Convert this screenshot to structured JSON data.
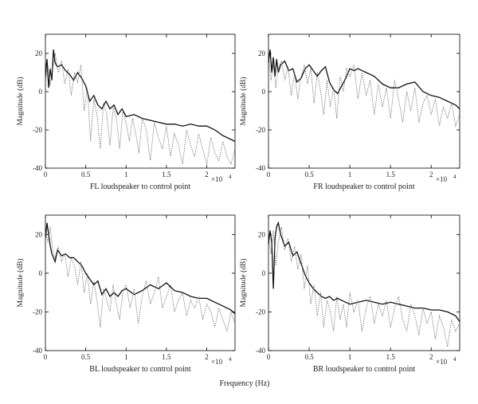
{
  "figure": {
    "shared_xlabel": "Frequency (Hz)"
  },
  "chart_data": [
    {
      "type": "line",
      "caption": "FL loudspeaker to control point",
      "ylabel": "Magnitude (dB)",
      "xlim": [
        0,
        23500
      ],
      "ylim": [
        -40,
        30
      ],
      "xticks": [
        0,
        5000,
        10000,
        15000,
        20000
      ],
      "xtick_labels": [
        "0",
        "0.5",
        "1",
        "1.5",
        "2"
      ],
      "yticks": [
        20,
        0,
        -20,
        -40
      ],
      "ytick_labels": [
        "20",
        "0",
        "-20",
        "-40"
      ],
      "x_multiplier": "×10",
      "x_exponent": "4",
      "series": [
        {
          "style": "solid",
          "x": [
            0,
            200,
            400,
            600,
            800,
            1000,
            1200,
            1500,
            2000,
            2500,
            3000,
            3500,
            4000,
            4500,
            5000,
            5500,
            6000,
            6500,
            7000,
            7500,
            8000,
            8500,
            9000,
            9500,
            10000,
            11000,
            12000,
            13000,
            14000,
            15000,
            16000,
            17000,
            18000,
            19000,
            20000,
            21000,
            22000,
            23000,
            23500
          ],
          "y": [
            8,
            17,
            2,
            12,
            6,
            22,
            15,
            13,
            14,
            11,
            9,
            6,
            10,
            7,
            3,
            -5,
            -2,
            -7,
            -9,
            -5,
            -9,
            -7,
            -12,
            -9,
            -13,
            -12,
            -14,
            -15,
            -16,
            -17,
            -17,
            -18,
            -17,
            -18,
            -18,
            -20,
            -23,
            -25,
            -26
          ]
        },
        {
          "style": "dotted",
          "x": [
            0,
            300,
            600,
            900,
            1200,
            1600,
            2000,
            2400,
            2800,
            3200,
            3600,
            4000,
            4400,
            4800,
            5200,
            5600,
            6000,
            6400,
            6800,
            7200,
            7600,
            8000,
            8400,
            8800,
            9200,
            9600,
            10000,
            10400,
            10800,
            11200,
            11600,
            12000,
            12500,
            13000,
            13500,
            14000,
            14500,
            15000,
            15500,
            16000,
            16500,
            17000,
            17500,
            18000,
            18500,
            19000,
            19500,
            20000,
            20500,
            21000,
            21500,
            22000,
            22500,
            23000,
            23500
          ],
          "y": [
            5,
            14,
            3,
            12,
            20,
            10,
            16,
            4,
            12,
            -2,
            10,
            5,
            14,
            -10,
            2,
            -26,
            -4,
            -12,
            -30,
            -6,
            -12,
            -28,
            -8,
            -14,
            -30,
            -10,
            -16,
            -26,
            -14,
            -22,
            -32,
            -14,
            -20,
            -36,
            -16,
            -24,
            -30,
            -18,
            -34,
            -22,
            -28,
            -38,
            -20,
            -28,
            -34,
            -22,
            -30,
            -38,
            -24,
            -32,
            -36,
            -26,
            -34,
            -38,
            -30
          ]
        }
      ]
    },
    {
      "type": "line",
      "caption": "FR loudspeaker to control point",
      "ylabel": "Magnitude (dB)",
      "xlim": [
        0,
        23500
      ],
      "ylim": [
        -40,
        30
      ],
      "xticks": [
        0,
        5000,
        10000,
        15000,
        20000
      ],
      "xtick_labels": [
        "0",
        "0.5",
        "1",
        "1.5",
        "2"
      ],
      "yticks": [
        20,
        0,
        -20,
        -40
      ],
      "ytick_labels": [
        "20",
        "0",
        "-20",
        "-40"
      ],
      "x_multiplier": "×10",
      "x_exponent": "4",
      "series": [
        {
          "style": "solid",
          "x": [
            0,
            200,
            400,
            600,
            800,
            1000,
            1200,
            1500,
            2000,
            2500,
            3000,
            3500,
            4000,
            4500,
            5000,
            5500,
            6000,
            6500,
            7000,
            7500,
            8000,
            8500,
            9000,
            9500,
            10000,
            10500,
            11000,
            12000,
            13000,
            14000,
            15000,
            16000,
            17000,
            18000,
            19000,
            20000,
            21000,
            22000,
            23000,
            23500
          ],
          "y": [
            15,
            22,
            10,
            18,
            8,
            17,
            10,
            14,
            16,
            11,
            12,
            5,
            7,
            12,
            14,
            11,
            8,
            11,
            13,
            5,
            1,
            -1,
            3,
            7,
            12,
            11,
            12,
            10,
            8,
            4,
            2,
            2,
            4,
            5,
            0,
            -2,
            -3,
            -5,
            -7,
            -9
          ]
        },
        {
          "style": "dotted",
          "x": [
            0,
            300,
            600,
            900,
            1200,
            1600,
            2000,
            2400,
            2800,
            3200,
            3600,
            4000,
            4400,
            4800,
            5200,
            5600,
            6000,
            6400,
            6800,
            7200,
            7600,
            8000,
            8400,
            8800,
            9200,
            9600,
            10000,
            10500,
            11000,
            11500,
            12000,
            12500,
            13000,
            13500,
            14000,
            14500,
            15000,
            15500,
            16000,
            16500,
            17000,
            17500,
            18000,
            18500,
            19000,
            19500,
            20000,
            20500,
            21000,
            21500,
            22000,
            22500,
            23000,
            23500
          ],
          "y": [
            20,
            6,
            14,
            2,
            12,
            16,
            6,
            13,
            -2,
            10,
            -4,
            8,
            14,
            4,
            12,
            -6,
            10,
            0,
            -12,
            6,
            -8,
            2,
            -14,
            8,
            0,
            12,
            8,
            14,
            -4,
            10,
            -2,
            6,
            -12,
            4,
            -8,
            2,
            -14,
            6,
            -4,
            -16,
            0,
            -10,
            2,
            -16,
            -6,
            -2,
            -12,
            -4,
            -18,
            -8,
            -14,
            -6,
            -18,
            -12
          ]
        }
      ]
    },
    {
      "type": "line",
      "caption": "BL loudspeaker to control point",
      "ylabel": "Magnitude (dB)",
      "xlim": [
        0,
        23500
      ],
      "ylim": [
        -40,
        30
      ],
      "xticks": [
        0,
        5000,
        10000,
        15000,
        20000
      ],
      "xtick_labels": [
        "0",
        "0.5",
        "1",
        "1.5",
        "2"
      ],
      "yticks": [
        20,
        0,
        -20,
        -40
      ],
      "ytick_labels": [
        "20",
        "0",
        "-20",
        "-40"
      ],
      "x_multiplier": "×10",
      "x_exponent": "4",
      "series": [
        {
          "style": "solid",
          "x": [
            0,
            200,
            400,
            600,
            800,
            1000,
            1200,
            1500,
            2000,
            2500,
            3000,
            3500,
            4000,
            4500,
            5000,
            5500,
            6000,
            6500,
            7000,
            7500,
            8000,
            8500,
            9000,
            9500,
            10000,
            11000,
            12000,
            13000,
            14000,
            15000,
            16000,
            17000,
            18000,
            19000,
            20000,
            21000,
            22000,
            23000,
            23500
          ],
          "y": [
            18,
            26,
            20,
            14,
            10,
            8,
            6,
            12,
            9,
            10,
            8,
            8,
            6,
            4,
            0,
            -3,
            -6,
            -4,
            -11,
            -8,
            -12,
            -10,
            -12,
            -9,
            -8,
            -11,
            -9,
            -6,
            -8,
            -5,
            -9,
            -10,
            -12,
            -13,
            -13,
            -15,
            -17,
            -19,
            -21
          ]
        },
        {
          "style": "dotted",
          "x": [
            0,
            300,
            600,
            900,
            1200,
            1600,
            2000,
            2400,
            2800,
            3200,
            3600,
            4000,
            4400,
            4800,
            5200,
            5600,
            6000,
            6400,
            6800,
            7200,
            7600,
            8000,
            8400,
            8800,
            9200,
            9600,
            10000,
            10500,
            11000,
            11500,
            12000,
            12500,
            13000,
            13500,
            14000,
            14500,
            15000,
            15500,
            16000,
            16500,
            17000,
            17500,
            18000,
            18500,
            19000,
            19500,
            20000,
            20500,
            21000,
            21500,
            22000,
            22500,
            23000,
            23500
          ],
          "y": [
            22,
            16,
            24,
            12,
            8,
            14,
            6,
            10,
            -2,
            8,
            4,
            -6,
            6,
            -10,
            0,
            -16,
            -4,
            -14,
            -28,
            -8,
            -14,
            -20,
            -6,
            -16,
            -24,
            -10,
            -6,
            -18,
            -8,
            -26,
            -12,
            -4,
            -16,
            -10,
            -2,
            -18,
            -12,
            -6,
            -20,
            -14,
            -10,
            -22,
            -14,
            -18,
            -12,
            -24,
            -16,
            -20,
            -28,
            -18,
            -24,
            -30,
            -20,
            -26
          ]
        }
      ]
    },
    {
      "type": "line",
      "caption": "BR loudspeaker to control point",
      "ylabel": "Magnitude (dB)",
      "xlim": [
        0,
        23500
      ],
      "ylim": [
        -40,
        30
      ],
      "xticks": [
        0,
        5000,
        10000,
        15000,
        20000
      ],
      "xtick_labels": [
        "0",
        "0.5",
        "1",
        "1.5",
        "2"
      ],
      "yticks": [
        20,
        0,
        -20,
        -40
      ],
      "ytick_labels": [
        "20",
        "0",
        "-20",
        "-40"
      ],
      "x_multiplier": "×10",
      "x_exponent": "4",
      "series": [
        {
          "style": "solid",
          "x": [
            0,
            200,
            400,
            600,
            800,
            1000,
            1200,
            1500,
            2000,
            2500,
            3000,
            3500,
            4000,
            4500,
            5000,
            5500,
            6000,
            6500,
            7000,
            7500,
            8000,
            8500,
            9000,
            9500,
            10000,
            11000,
            12000,
            13000,
            14000,
            15000,
            16000,
            17000,
            18000,
            19000,
            20000,
            21000,
            22000,
            23000,
            23500
          ],
          "y": [
            15,
            22,
            16,
            -8,
            18,
            24,
            26,
            20,
            14,
            16,
            9,
            11,
            5,
            -1,
            -5,
            -8,
            -10,
            -12,
            -13,
            -12,
            -14,
            -13,
            -14,
            -15,
            -16,
            -15,
            -14,
            -15,
            -16,
            -15,
            -16,
            -17,
            -18,
            -18,
            -19,
            -19,
            -20,
            -22,
            -25
          ]
        },
        {
          "style": "dotted",
          "x": [
            0,
            300,
            600,
            900,
            1200,
            1600,
            2000,
            2400,
            2800,
            3200,
            3600,
            4000,
            4400,
            4800,
            5200,
            5600,
            6000,
            6400,
            6800,
            7200,
            7600,
            8000,
            8400,
            8800,
            9200,
            9600,
            10000,
            10500,
            11000,
            11500,
            12000,
            12500,
            13000,
            13500,
            14000,
            14500,
            15000,
            15500,
            16000,
            16500,
            17000,
            17500,
            18000,
            18500,
            19000,
            19500,
            20000,
            20500,
            21000,
            21500,
            22000,
            22500,
            23000,
            23500
          ],
          "y": [
            18,
            10,
            22,
            4,
            16,
            24,
            12,
            18,
            6,
            14,
            2,
            10,
            -8,
            4,
            -16,
            -6,
            -22,
            -10,
            -28,
            -14,
            -20,
            -30,
            -12,
            -24,
            -16,
            -28,
            -10,
            -20,
            -14,
            -30,
            -18,
            -12,
            -26,
            -16,
            -22,
            -14,
            -28,
            -18,
            -12,
            -24,
            -30,
            -16,
            -22,
            -32,
            -18,
            -26,
            -20,
            -34,
            -22,
            -28,
            -38,
            -24,
            -30,
            -26
          ]
        }
      ]
    }
  ]
}
